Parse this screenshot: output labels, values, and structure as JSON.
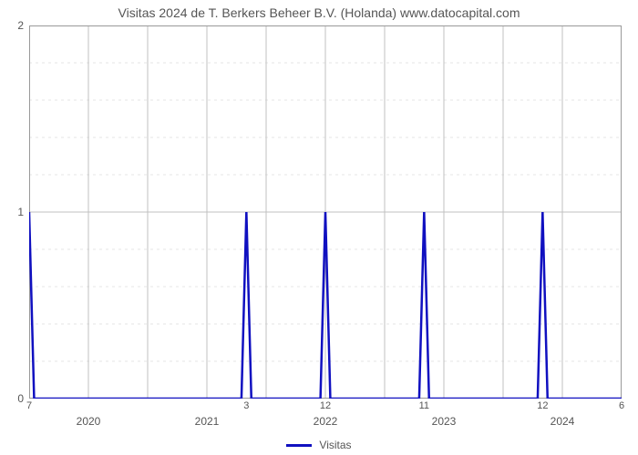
{
  "chart": {
    "type": "line",
    "title": "Visitas 2024 de T. Berkers Beheer B.V. (Holanda) www.datocapital.com",
    "title_fontsize": 14,
    "title_color": "#555555",
    "background_color": "#ffffff",
    "plot_border_color": "#999999",
    "grid_major_color": "#c0c0c0",
    "grid_minor_color": "#e6e6e6",
    "line_color": "#1010c0",
    "line_width": 2.5,
    "y": {
      "lim": [
        0,
        2
      ],
      "ticks": [
        0,
        1,
        2
      ],
      "minor_tick_count_between": 4,
      "label_fontsize": 12,
      "label_color": "#555555"
    },
    "x": {
      "total_months": 60,
      "tick_every_months": 6,
      "year_labels": [
        {
          "label": "2020",
          "month_index": 6
        },
        {
          "label": "2021",
          "month_index": 18
        },
        {
          "label": "2022",
          "month_index": 30
        },
        {
          "label": "2023",
          "month_index": 42
        },
        {
          "label": "2024",
          "month_index": 54
        }
      ],
      "value_labels": [
        {
          "label": "7",
          "month_index": 0
        },
        {
          "label": "3",
          "month_index": 22
        },
        {
          "label": "12",
          "month_index": 30
        },
        {
          "label": "11",
          "month_index": 40
        },
        {
          "label": "12",
          "month_index": 52
        },
        {
          "label": "6",
          "month_index": 60
        }
      ]
    },
    "series_points": [
      [
        0,
        1
      ],
      [
        0.5,
        0
      ],
      [
        21.5,
        0
      ],
      [
        22,
        1
      ],
      [
        22.5,
        0
      ],
      [
        29.5,
        0
      ],
      [
        30,
        1
      ],
      [
        30.5,
        0
      ],
      [
        39.5,
        0
      ],
      [
        40,
        1
      ],
      [
        40.5,
        0
      ],
      [
        51.5,
        0
      ],
      [
        52,
        1
      ],
      [
        52.5,
        0
      ],
      [
        60,
        0
      ]
    ],
    "legend": {
      "label": "Visitas",
      "swatch_color": "#1010c0",
      "swatch_width": 3,
      "fontsize": 12,
      "color": "#555555"
    }
  }
}
